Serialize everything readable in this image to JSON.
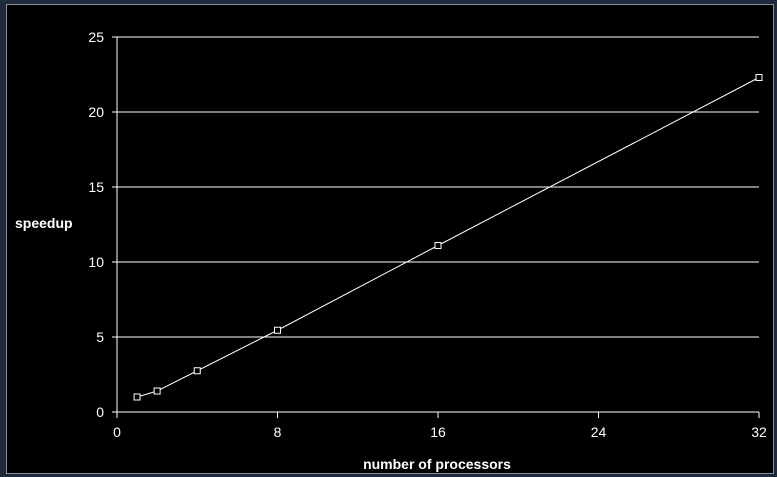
{
  "chart_data": {
    "type": "line",
    "title": "",
    "xlabel": "number of processors",
    "ylabel": "speedup",
    "xlim": [
      0,
      32
    ],
    "ylim": [
      0,
      25
    ],
    "x_ticks": [
      0,
      8,
      16,
      24,
      32
    ],
    "y_ticks": [
      0,
      5,
      10,
      15,
      20,
      25
    ],
    "grid": "horizontal",
    "legend": "none",
    "series": [
      {
        "x": [
          1,
          2,
          4,
          8,
          16,
          32
        ],
        "values": [
          1.0,
          1.4,
          2.75,
          5.45,
          11.1,
          22.3
        ],
        "color": "#ffffff",
        "marker": "square"
      }
    ],
    "colors": {
      "background": "#000000",
      "gridline": "#ffffff",
      "line": "#ffffff"
    }
  }
}
